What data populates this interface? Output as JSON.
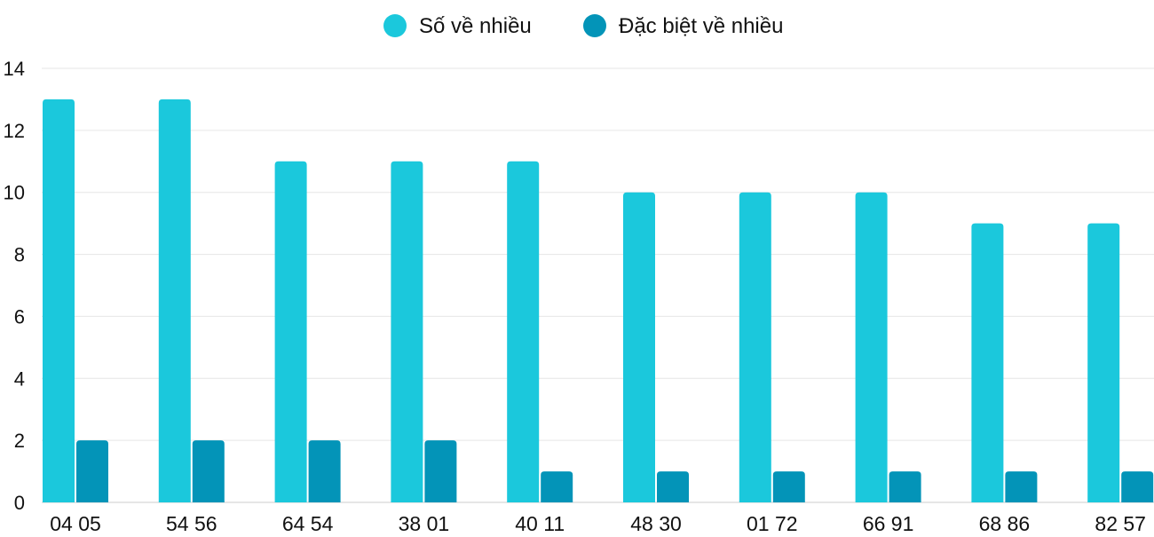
{
  "chart_data": {
    "type": "bar",
    "title": "",
    "xlabel": "",
    "ylabel": "",
    "categories": [
      "04 05",
      "54 56",
      "64 54",
      "38 01",
      "40 11",
      "48 30",
      "01 72",
      "66 91",
      "68 86",
      "82 57"
    ],
    "series": [
      {
        "name": "Số về nhiều",
        "color": "#1bc8dc",
        "values": [
          13,
          13,
          11,
          11,
          11,
          10,
          10,
          10,
          9,
          9
        ]
      },
      {
        "name": "Đặc biệt về nhiều",
        "color": "#0394b8",
        "values": [
          2,
          2,
          2,
          2,
          1,
          1,
          1,
          1,
          1,
          1
        ]
      }
    ],
    "ylim": [
      0,
      14
    ],
    "yticks": [
      0,
      2,
      4,
      6,
      8,
      10,
      12,
      14
    ],
    "grid": true,
    "legend": "top-center"
  }
}
